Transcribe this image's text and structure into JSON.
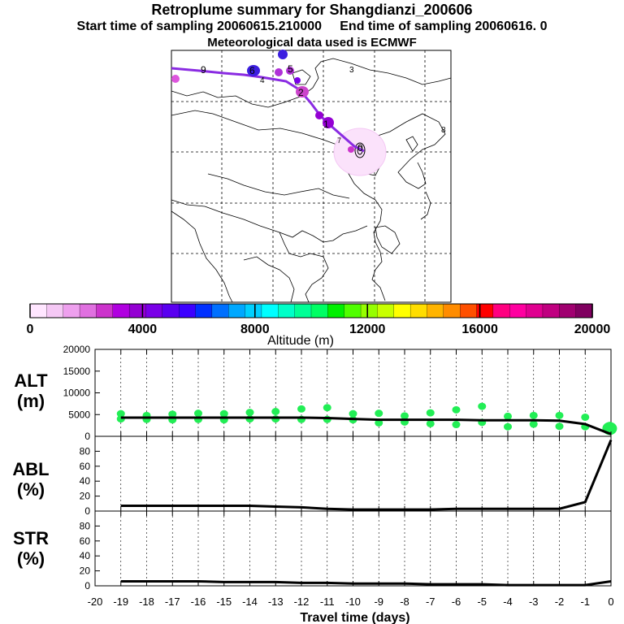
{
  "titles": {
    "main": "Retroplume summary for Shangdianzi_200606",
    "start": "Start time of sampling 20060615.210000",
    "end": "End time of sampling 20060616.     0",
    "met": "Meteorological data used is ECMWF"
  },
  "map": {
    "day_labels": [
      "0",
      "1",
      "2",
      "3",
      "4",
      "5",
      "6",
      "7",
      "8",
      "9"
    ]
  },
  "colorbar": {
    "label": "Altitude (m)",
    "tick_labels": [
      "0",
      "4000",
      "8000",
      "12000",
      "16000",
      "20000"
    ],
    "ticks": [
      0,
      4000,
      8000,
      12000,
      16000,
      20000
    ],
    "colors": [
      "#ffe6ff",
      "#f5c8f5",
      "#eea0ee",
      "#e070e0",
      "#cc33cc",
      "#b000e0",
      "#9400d3",
      "#7a00e8",
      "#5a00f0",
      "#3c00ff",
      "#0030ff",
      "#0070ff",
      "#00a8ff",
      "#00d0ff",
      "#00ffff",
      "#00ffc8",
      "#00ff96",
      "#00ff64",
      "#00f000",
      "#50ff00",
      "#96ff00",
      "#c8ff00",
      "#ffff00",
      "#ffdd00",
      "#ffb400",
      "#ff8c00",
      "#ff5000",
      "#ff0000",
      "#ff0080",
      "#ff00a0",
      "#e00090",
      "#c00080",
      "#a00070",
      "#800060"
    ]
  },
  "chart_data": [
    {
      "type": "line",
      "name": "ALT",
      "ylabel": "ALT (m)",
      "y_tick_labels": [
        "0",
        "5000",
        "10000",
        "15000",
        "20000"
      ],
      "ylim": [
        0,
        20000
      ],
      "x": [
        0,
        -1,
        -2,
        -3,
        -4,
        -5,
        -6,
        -7,
        -8,
        -9,
        -10,
        -11,
        -12,
        -13,
        -14,
        -15,
        -16,
        -17,
        -18,
        -19
      ],
      "mean": [
        500,
        2800,
        3600,
        3700,
        3700,
        3700,
        3800,
        3800,
        3800,
        3800,
        4000,
        4200,
        4300,
        4300,
        4300,
        4300,
        4300,
        4300,
        4300,
        4300
      ],
      "points": [
        {
          "x": -0.1,
          "y": 1500
        },
        {
          "x": -0.05,
          "y": 2500
        },
        {
          "x": -1,
          "y": 4400
        },
        {
          "x": -1,
          "y": 2200
        },
        {
          "x": -2,
          "y": 4800
        },
        {
          "x": -2,
          "y": 2300
        },
        {
          "x": -3,
          "y": 4800
        },
        {
          "x": -3,
          "y": 2800
        },
        {
          "x": -4,
          "y": 4600
        },
        {
          "x": -4,
          "y": 2200
        },
        {
          "x": -5,
          "y": 6900
        },
        {
          "x": -5,
          "y": 3200
        },
        {
          "x": -6,
          "y": 6100
        },
        {
          "x": -6,
          "y": 2700
        },
        {
          "x": -7,
          "y": 5400
        },
        {
          "x": -7,
          "y": 2900
        },
        {
          "x": -8,
          "y": 4700
        },
        {
          "x": -8,
          "y": 3300
        },
        {
          "x": -9,
          "y": 5300
        },
        {
          "x": -9,
          "y": 3100
        },
        {
          "x": -10,
          "y": 5200
        },
        {
          "x": -10,
          "y": 3800
        },
        {
          "x": -11,
          "y": 6600
        },
        {
          "x": -11,
          "y": 3900
        },
        {
          "x": -12,
          "y": 6300
        },
        {
          "x": -12,
          "y": 3900
        },
        {
          "x": -13,
          "y": 5700
        },
        {
          "x": -13,
          "y": 4000
        },
        {
          "x": -14,
          "y": 5500
        },
        {
          "x": -14,
          "y": 4000
        },
        {
          "x": -15,
          "y": 5200
        },
        {
          "x": -15,
          "y": 3800
        },
        {
          "x": -16,
          "y": 5300
        },
        {
          "x": -16,
          "y": 3900
        },
        {
          "x": -17,
          "y": 5100
        },
        {
          "x": -17,
          "y": 3800
        },
        {
          "x": -18,
          "y": 4800
        },
        {
          "x": -18,
          "y": 3900
        },
        {
          "x": -19,
          "y": 5200
        },
        {
          "x": -19,
          "y": 4000
        }
      ]
    },
    {
      "type": "line",
      "name": "ABL",
      "ylabel": "ABL (%)",
      "y_tick_labels": [
        "0",
        "20",
        "40",
        "60",
        "80"
      ],
      "ylim": [
        0,
        100
      ],
      "x": [
        0,
        -1,
        -2,
        -3,
        -4,
        -5,
        -6,
        -7,
        -8,
        -9,
        -10,
        -11,
        -12,
        -13,
        -14,
        -15,
        -16,
        -17,
        -18,
        -19
      ],
      "values": [
        95,
        12,
        3,
        3,
        3,
        3,
        3,
        2,
        2,
        2,
        2,
        3,
        5,
        6,
        7,
        7,
        7,
        7,
        7,
        7
      ]
    },
    {
      "type": "line",
      "name": "STR",
      "ylabel": "STR (%)",
      "y_tick_labels": [
        "0",
        "20",
        "40",
        "60",
        "80"
      ],
      "ylim": [
        0,
        100
      ],
      "x": [
        0,
        -1,
        -2,
        -3,
        -4,
        -5,
        -6,
        -7,
        -8,
        -9,
        -10,
        -11,
        -12,
        -13,
        -14,
        -15,
        -16,
        -17,
        -18,
        -19
      ],
      "values": [
        6,
        1,
        1,
        1,
        1,
        2,
        2,
        2,
        3,
        3,
        3,
        4,
        4,
        5,
        5,
        5,
        6,
        6,
        6,
        6
      ]
    }
  ],
  "xaxis": {
    "label": "Travel time (days)",
    "tick_labels": [
      "-20",
      "-19",
      "-18",
      "-17",
      "-16",
      "-15",
      "-14",
      "-13",
      "-12",
      "-11",
      "-10",
      "-9",
      "-8",
      "-7",
      "-6",
      "-5",
      "-4",
      "-3",
      "-2",
      "-1",
      "0"
    ],
    "xlim": [
      -20,
      0
    ]
  },
  "panel_labels": {
    "alt": [
      "ALT",
      "(m)"
    ],
    "abl": [
      "ABL",
      "(%)"
    ],
    "str": [
      "STR",
      "(%)"
    ]
  },
  "colors": {
    "trajectory": "#8a2be2",
    "scatter": "#22ee55",
    "line": "#000000"
  }
}
